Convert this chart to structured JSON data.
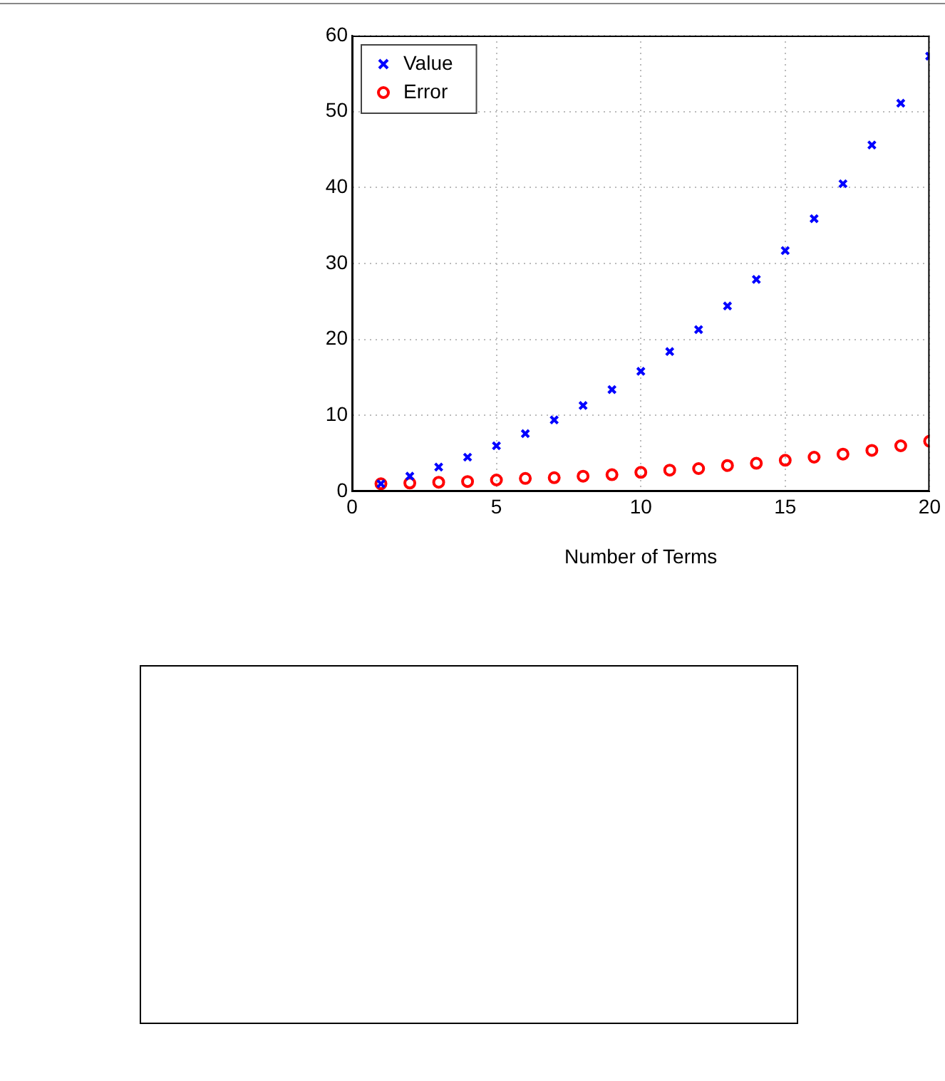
{
  "chart_data": {
    "type": "scatter",
    "xlabel": "Number of Terms",
    "x": [
      1,
      2,
      3,
      4,
      5,
      6,
      7,
      8,
      9,
      10,
      11,
      12,
      13,
      14,
      15,
      16,
      17,
      18,
      19,
      20
    ],
    "series": [
      {
        "name": "Value",
        "color": "#0000ff",
        "marker": "cross",
        "values": [
          1,
          2.0,
          3.2,
          4.5,
          6.0,
          7.6,
          9.4,
          11.3,
          13.4,
          15.8,
          18.4,
          21.3,
          24.4,
          27.9,
          31.7,
          35.9,
          40.5,
          45.6,
          51.1,
          57.3
        ]
      },
      {
        "name": "Error",
        "color": "#ff0000",
        "marker": "circle",
        "values": [
          1,
          1.1,
          1.2,
          1.3,
          1.5,
          1.7,
          1.8,
          2.0,
          2.2,
          2.5,
          2.8,
          3.0,
          3.4,
          3.7,
          4.1,
          4.5,
          4.9,
          5.4,
          6.0,
          6.6
        ]
      }
    ],
    "xlim": [
      0,
      20
    ],
    "xticks": [
      0,
      5,
      10,
      15,
      20
    ],
    "ylim": [
      0,
      60
    ],
    "yticks": [
      0,
      10,
      20,
      30,
      40,
      50,
      60
    ],
    "grid": true,
    "legend": "top left"
  }
}
